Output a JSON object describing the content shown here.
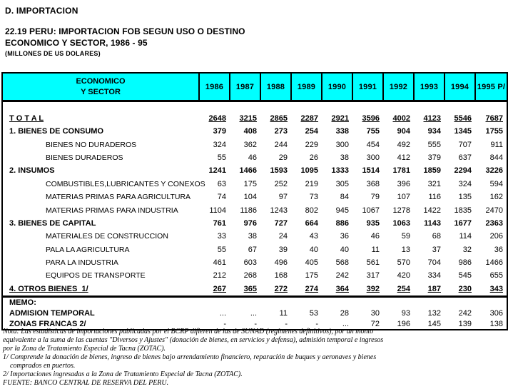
{
  "header": {
    "section": "D. IMPORTACION",
    "title_line1": "22.19  PERU: IMPORTACION FOB SEGUN USO O DESTINO",
    "title_line2": "ECONOMICO Y SECTOR, 1986 - 95",
    "units": "(MILLONES DE US DOLARES)"
  },
  "colors": {
    "header_bg": "#00ffff",
    "border": "#000000",
    "text": "#000000",
    "page_bg": "#ffffff"
  },
  "table": {
    "header": {
      "label_line1": "ECONOMICO",
      "label_line2": "Y SECTOR",
      "years": [
        "1986",
        "1987",
        "1988",
        "1989",
        "1990",
        "1991",
        "1992",
        "1993",
        "1994",
        "1995 P/"
      ]
    },
    "rows": [
      {
        "style": "total",
        "label": "T O T A L",
        "values": [
          "2648",
          "3215",
          "2865",
          "2287",
          "2921",
          "3596",
          "4002",
          "4123",
          "5546",
          "7687"
        ]
      },
      {
        "style": "category",
        "label": "1. BIENES DE CONSUMO",
        "values": [
          "379",
          "408",
          "273",
          "254",
          "338",
          "755",
          "904",
          "934",
          "1345",
          "1755"
        ]
      },
      {
        "style": "sub",
        "label": "BIENES NO DURADEROS",
        "values": [
          "324",
          "362",
          "244",
          "229",
          "300",
          "454",
          "492",
          "555",
          "707",
          "911"
        ]
      },
      {
        "style": "sub",
        "label": "BIENES DURADEROS",
        "values": [
          "55",
          "46",
          "29",
          "26",
          "38",
          "300",
          "412",
          "379",
          "637",
          "844"
        ]
      },
      {
        "style": "category",
        "label": "2. INSUMOS",
        "values": [
          "1241",
          "1466",
          "1593",
          "1095",
          "1333",
          "1514",
          "1781",
          "1859",
          "2294",
          "3226"
        ]
      },
      {
        "style": "sub",
        "label": "COMBUSTIBLES,LUBRICANTES Y CONEXOS",
        "values": [
          "63",
          "175",
          "252",
          "219",
          "305",
          "368",
          "396",
          "321",
          "324",
          "594"
        ]
      },
      {
        "style": "sub",
        "label": "MATERIAS PRIMAS PARA AGRICULTURA",
        "values": [
          "74",
          "104",
          "97",
          "73",
          "84",
          "79",
          "107",
          "116",
          "135",
          "162"
        ]
      },
      {
        "style": "sub",
        "label": "MATERIAS PRIMAS PARA INDUSTRIA",
        "values": [
          "1104",
          "1186",
          "1243",
          "802",
          "945",
          "1067",
          "1278",
          "1422",
          "1835",
          "2470"
        ]
      },
      {
        "style": "category",
        "label": "3. BIENES DE CAPITAL",
        "values": [
          "761",
          "976",
          "727",
          "664",
          "886",
          "935",
          "1063",
          "1143",
          "1677",
          "2363"
        ]
      },
      {
        "style": "sub",
        "label": "MATERIALES DE CONSTRUCCION",
        "values": [
          "33",
          "38",
          "24",
          "43",
          "36",
          "46",
          "59",
          "68",
          "114",
          "206"
        ]
      },
      {
        "style": "sub",
        "label": "PALA LA AGRICULTURA",
        "values": [
          "55",
          "67",
          "39",
          "40",
          "40",
          "11",
          "13",
          "37",
          "32",
          "36"
        ]
      },
      {
        "style": "sub",
        "label": "PARA LA INDUSTRIA",
        "values": [
          "461",
          "603",
          "496",
          "405",
          "568",
          "561",
          "570",
          "704",
          "986",
          "1466"
        ]
      },
      {
        "style": "sub",
        "label": "EQUIPOS DE TRANSPORTE",
        "values": [
          "212",
          "268",
          "168",
          "175",
          "242",
          "317",
          "420",
          "334",
          "545",
          "655"
        ]
      },
      {
        "style": "category end",
        "label": "4. OTROS BIENES  1/",
        "values": [
          "267",
          "365",
          "272",
          "274",
          "364",
          "392",
          "254",
          "187",
          "230",
          "343"
        ]
      },
      {
        "style": "memo_title",
        "label": "MEMO:",
        "values": [
          "",
          "",
          "",
          "",
          "",
          "",
          "",
          "",
          "",
          ""
        ]
      },
      {
        "style": "memo",
        "label": "ADMISION TEMPORAL",
        "values": [
          "...",
          "...",
          "11",
          "53",
          "28",
          "30",
          "93",
          "132",
          "242",
          "306"
        ]
      },
      {
        "style": "memo",
        "label": "ZONAS FRANCAS 2/",
        "values": [
          "-",
          "-",
          "-",
          "-",
          "...",
          "72",
          "196",
          "145",
          "139",
          "138"
        ]
      }
    ]
  },
  "footnotes": [
    "Nota: Las estadísticas de importaciones publicadas por el BCRP difieren de las de SUNAD (regímenes definitivos), por un monto",
    "equivalente a la suma de las cuentas \"Diversos y Ajustes\" (donación de bienes, en servicios y defensa), admisión temporal e ingresos",
    "por la Zona de Tratamiento Especial de Tacna (ZOTAC).",
    "1/ Comprende la donación de bienes, ingreso de bienes bajo arrendamiento financiero, reparación de buques y aeronaves y bienes",
    "    comprados en puertos.",
    "2/ Importaciones ingresadas a la Zona de Tratamiento Especial de Tacna (ZOTAC).",
    "FUENTE: BANCO CENTRAL DE RESERVA DEL PERU."
  ]
}
